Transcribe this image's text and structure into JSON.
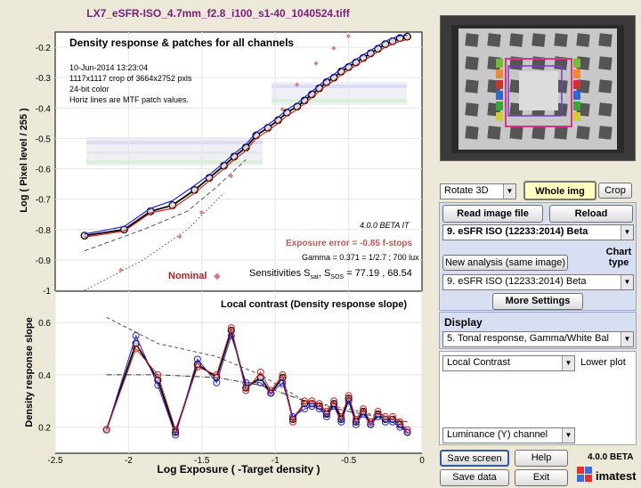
{
  "window": {
    "title": "LX7_eSFR-ISO_4.7mm_f2.8_i100_s1-40_1040524.tiff"
  },
  "top_plot": {
    "title": "Density response & patches for all channels",
    "info": [
      "10-Jun-2014 13:23:04",
      "1117x1117 crop of 3664x2752 pxls",
      "24-bit color",
      "Horiz lines are MTF patch values."
    ],
    "version": "4.0.0 BETA  IT",
    "exposure_error": "Exposure error = -0.85 f-stops",
    "gamma": "Gamma = 0.371 = 1/2.7 ;  700 lux",
    "nominal": "Nominal",
    "sens_prefix": "Sensitivities S",
    "sens_sub1": "sat",
    "sens_mid": ", S",
    "sens_sub2": "SOS",
    "sens_values": " = 77.19 ,  68.54",
    "ylabel": "Log ( Pixel level / 255 )",
    "y_ticks": [
      "-0.2",
      "-0.3",
      "-0.4",
      "-0.5",
      "-0.6",
      "-0.7",
      "-0.8",
      "-0.9",
      "-1"
    ]
  },
  "bottom_plot": {
    "title": "Local contrast (Density response slope)",
    "ylabel": "Density response slope",
    "xlabel": "Log Exposure ( -Target density )",
    "y_ticks": [
      "0.6",
      "0.4",
      "0.2"
    ],
    "x_ticks": [
      "-2.5",
      "-2",
      "-1.5",
      "-1",
      "-0.5",
      "0"
    ]
  },
  "chart_data": [
    {
      "type": "line",
      "title": "Density response & patches for all channels",
      "ylabel": "Log ( Pixel level / 255 )",
      "xlim": [
        -2.5,
        0
      ],
      "ylim": [
        -1,
        -0.15
      ],
      "x": [
        -2.3,
        -2.03,
        -1.85,
        -1.7,
        -1.55,
        -1.45,
        -1.35,
        -1.28,
        -1.2,
        -1.13,
        -1.05,
        -0.98,
        -0.92,
        -0.85,
        -0.8,
        -0.75,
        -0.7,
        -0.65,
        -0.6,
        -0.55,
        -0.5,
        -0.45,
        -0.4,
        -0.35,
        -0.3,
        -0.25,
        -0.2,
        -0.15,
        -0.1
      ],
      "series": [
        {
          "name": "",
          "color": "#000000",
          "values": [
            -0.82,
            -0.8,
            -0.74,
            -0.72,
            -0.67,
            -0.63,
            -0.59,
            -0.56,
            -0.53,
            -0.49,
            -0.465,
            -0.44,
            -0.415,
            -0.395,
            -0.375,
            -0.355,
            -0.335,
            -0.315,
            -0.3,
            -0.28,
            -0.265,
            -0.25,
            -0.235,
            -0.22,
            -0.205,
            -0.19,
            -0.18,
            -0.17,
            -0.165
          ]
        },
        {
          "name": "",
          "color": "#2222cc",
          "values": [
            -0.815,
            -0.79,
            -0.73,
            -0.705,
            -0.655,
            -0.62,
            -0.58,
            -0.55,
            -0.52,
            -0.48,
            -0.455,
            -0.43,
            -0.405,
            -0.385,
            -0.365,
            -0.345,
            -0.325,
            -0.305,
            -0.29,
            -0.27,
            -0.255,
            -0.24,
            -0.225,
            -0.21,
            -0.195,
            -0.18,
            -0.17,
            -0.162,
            -0.16
          ]
        },
        {
          "name": "",
          "color": "#cc2222",
          "values": [
            -0.825,
            -0.805,
            -0.745,
            -0.73,
            -0.68,
            -0.64,
            -0.6,
            -0.57,
            -0.54,
            -0.5,
            -0.475,
            -0.45,
            -0.425,
            -0.405,
            -0.385,
            -0.365,
            -0.345,
            -0.325,
            -0.31,
            -0.29,
            -0.275,
            -0.26,
            -0.245,
            -0.23,
            -0.215,
            -0.2,
            -0.19,
            -0.18,
            -0.175
          ]
        }
      ]
    },
    {
      "type": "line",
      "title": "Local contrast (Density response slope)",
      "xlabel": "Log Exposure ( -Target density )",
      "ylabel": "Density response slope",
      "xlim": [
        -2.5,
        0
      ],
      "ylim": [
        0.1,
        0.72
      ],
      "x": [
        -2.15,
        -1.95,
        -1.8,
        -1.68,
        -1.53,
        -1.4,
        -1.3,
        -1.2,
        -1.1,
        -1.03,
        -0.95,
        -0.88,
        -0.8,
        -0.75,
        -0.7,
        -0.65,
        -0.6,
        -0.55,
        -0.5,
        -0.45,
        -0.4,
        -0.35,
        -0.3,
        -0.25,
        -0.2,
        -0.15,
        -0.1
      ],
      "series": [
        {
          "name": "",
          "color": "#000000",
          "values": [
            0.19,
            0.52,
            0.38,
            0.18,
            0.44,
            0.39,
            0.57,
            0.35,
            0.39,
            0.33,
            0.39,
            0.23,
            0.29,
            0.29,
            0.28,
            0.25,
            0.29,
            0.23,
            0.31,
            0.22,
            0.26,
            0.21,
            0.25,
            0.23,
            0.23,
            0.21,
            0.18
          ]
        },
        {
          "name": "",
          "color": "#2222cc",
          "values": [
            0.19,
            0.55,
            0.36,
            0.17,
            0.46,
            0.37,
            0.55,
            0.37,
            0.37,
            0.33,
            0.37,
            0.24,
            0.27,
            0.28,
            0.27,
            0.24,
            0.28,
            0.22,
            0.3,
            0.21,
            0.25,
            0.21,
            0.24,
            0.22,
            0.22,
            0.2,
            0.18
          ]
        },
        {
          "name": "",
          "color": "#cc2222",
          "values": [
            0.19,
            0.5,
            0.4,
            0.19,
            0.43,
            0.4,
            0.58,
            0.34,
            0.41,
            0.34,
            0.4,
            0.22,
            0.3,
            0.3,
            0.29,
            0.26,
            0.3,
            0.24,
            0.32,
            0.23,
            0.27,
            0.22,
            0.26,
            0.24,
            0.24,
            0.22,
            0.19
          ]
        }
      ]
    }
  ],
  "controls": {
    "rotate_select": "Rotate 3D",
    "whole_img": "Whole img",
    "crop": "Crop",
    "read_image": "Read image file",
    "reload": "Reload",
    "chart_select": "9. eSFR ISO  (12233:2014)  Beta",
    "new_analysis": "New analysis (same image)",
    "chart_type_label": "Chart\ntype",
    "chart_type_select": "9. eSFR ISO  (12233:2014)  Beta",
    "more_settings": "More Settings",
    "display_label": "Display",
    "display_select": "5.  Tonal response, Gamma/White Bal",
    "lower_plot_select": "Local Contrast",
    "lower_plot_label": "Lower plot",
    "channel_select": "Luminance (Y) channel",
    "save_screen": "Save screen",
    "help": "Help",
    "save_data": "Save data",
    "exit": "Exit",
    "version": "4.0.0 BETA",
    "logo": "imatest"
  }
}
